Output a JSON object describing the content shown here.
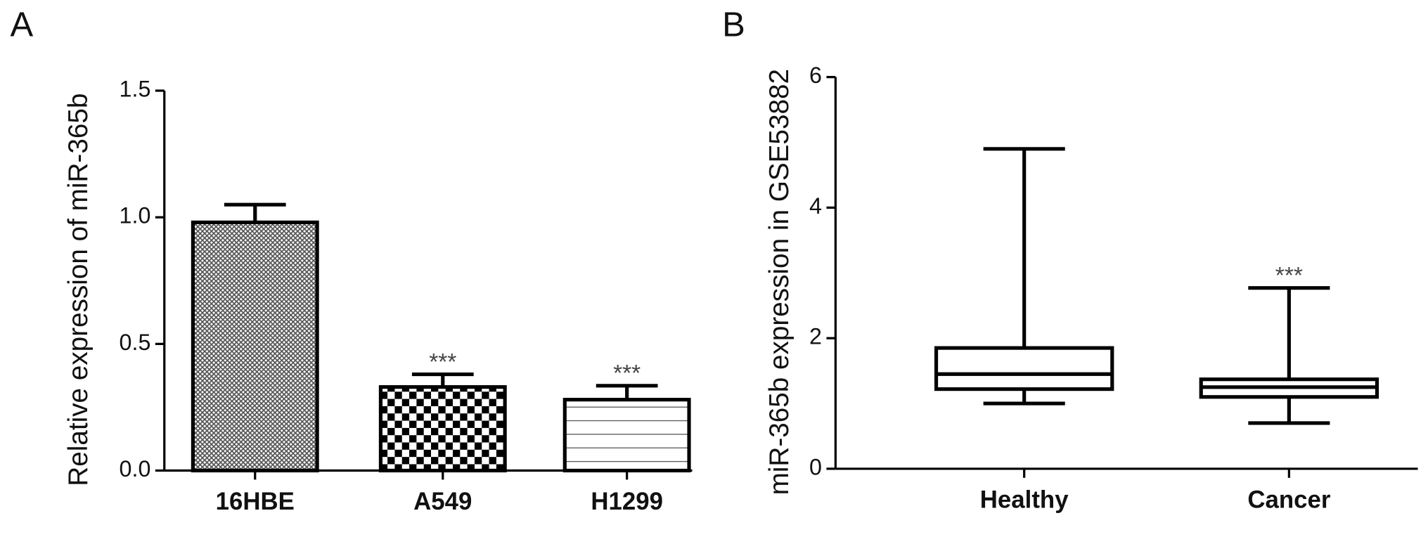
{
  "chart_data": [
    {
      "type": "bar",
      "panel_label": "A",
      "y_label": "Relative expression of miR-365b",
      "categories": [
        "16HBE",
        "A549",
        "H1299"
      ],
      "values": [
        0.98,
        0.33,
        0.28
      ],
      "errors": [
        0.07,
        0.05,
        0.055
      ],
      "annotations": [
        null,
        "***",
        "***"
      ],
      "ylim": [
        0,
        1.5
      ],
      "yticks": [
        {
          "value": 0,
          "label": "0.0"
        },
        0.5,
        {
          "value": 1,
          "label": "1.0"
        },
        1.5
      ]
    },
    {
      "type": "box",
      "panel_label": "B",
      "y_label": "miR-365b expression in GSE53882",
      "categories": [
        "Healthy",
        "Cancer"
      ],
      "min": [
        1.0,
        0.7
      ],
      "q1": [
        1.22,
        1.1
      ],
      "median": [
        1.45,
        1.25
      ],
      "q3": [
        1.85,
        1.37
      ],
      "max": [
        4.9,
        2.77
      ],
      "annotations": [
        null,
        "***"
      ],
      "ylim": [
        0,
        6
      ],
      "yticks": [
        0,
        2,
        4,
        6
      ]
    }
  ]
}
